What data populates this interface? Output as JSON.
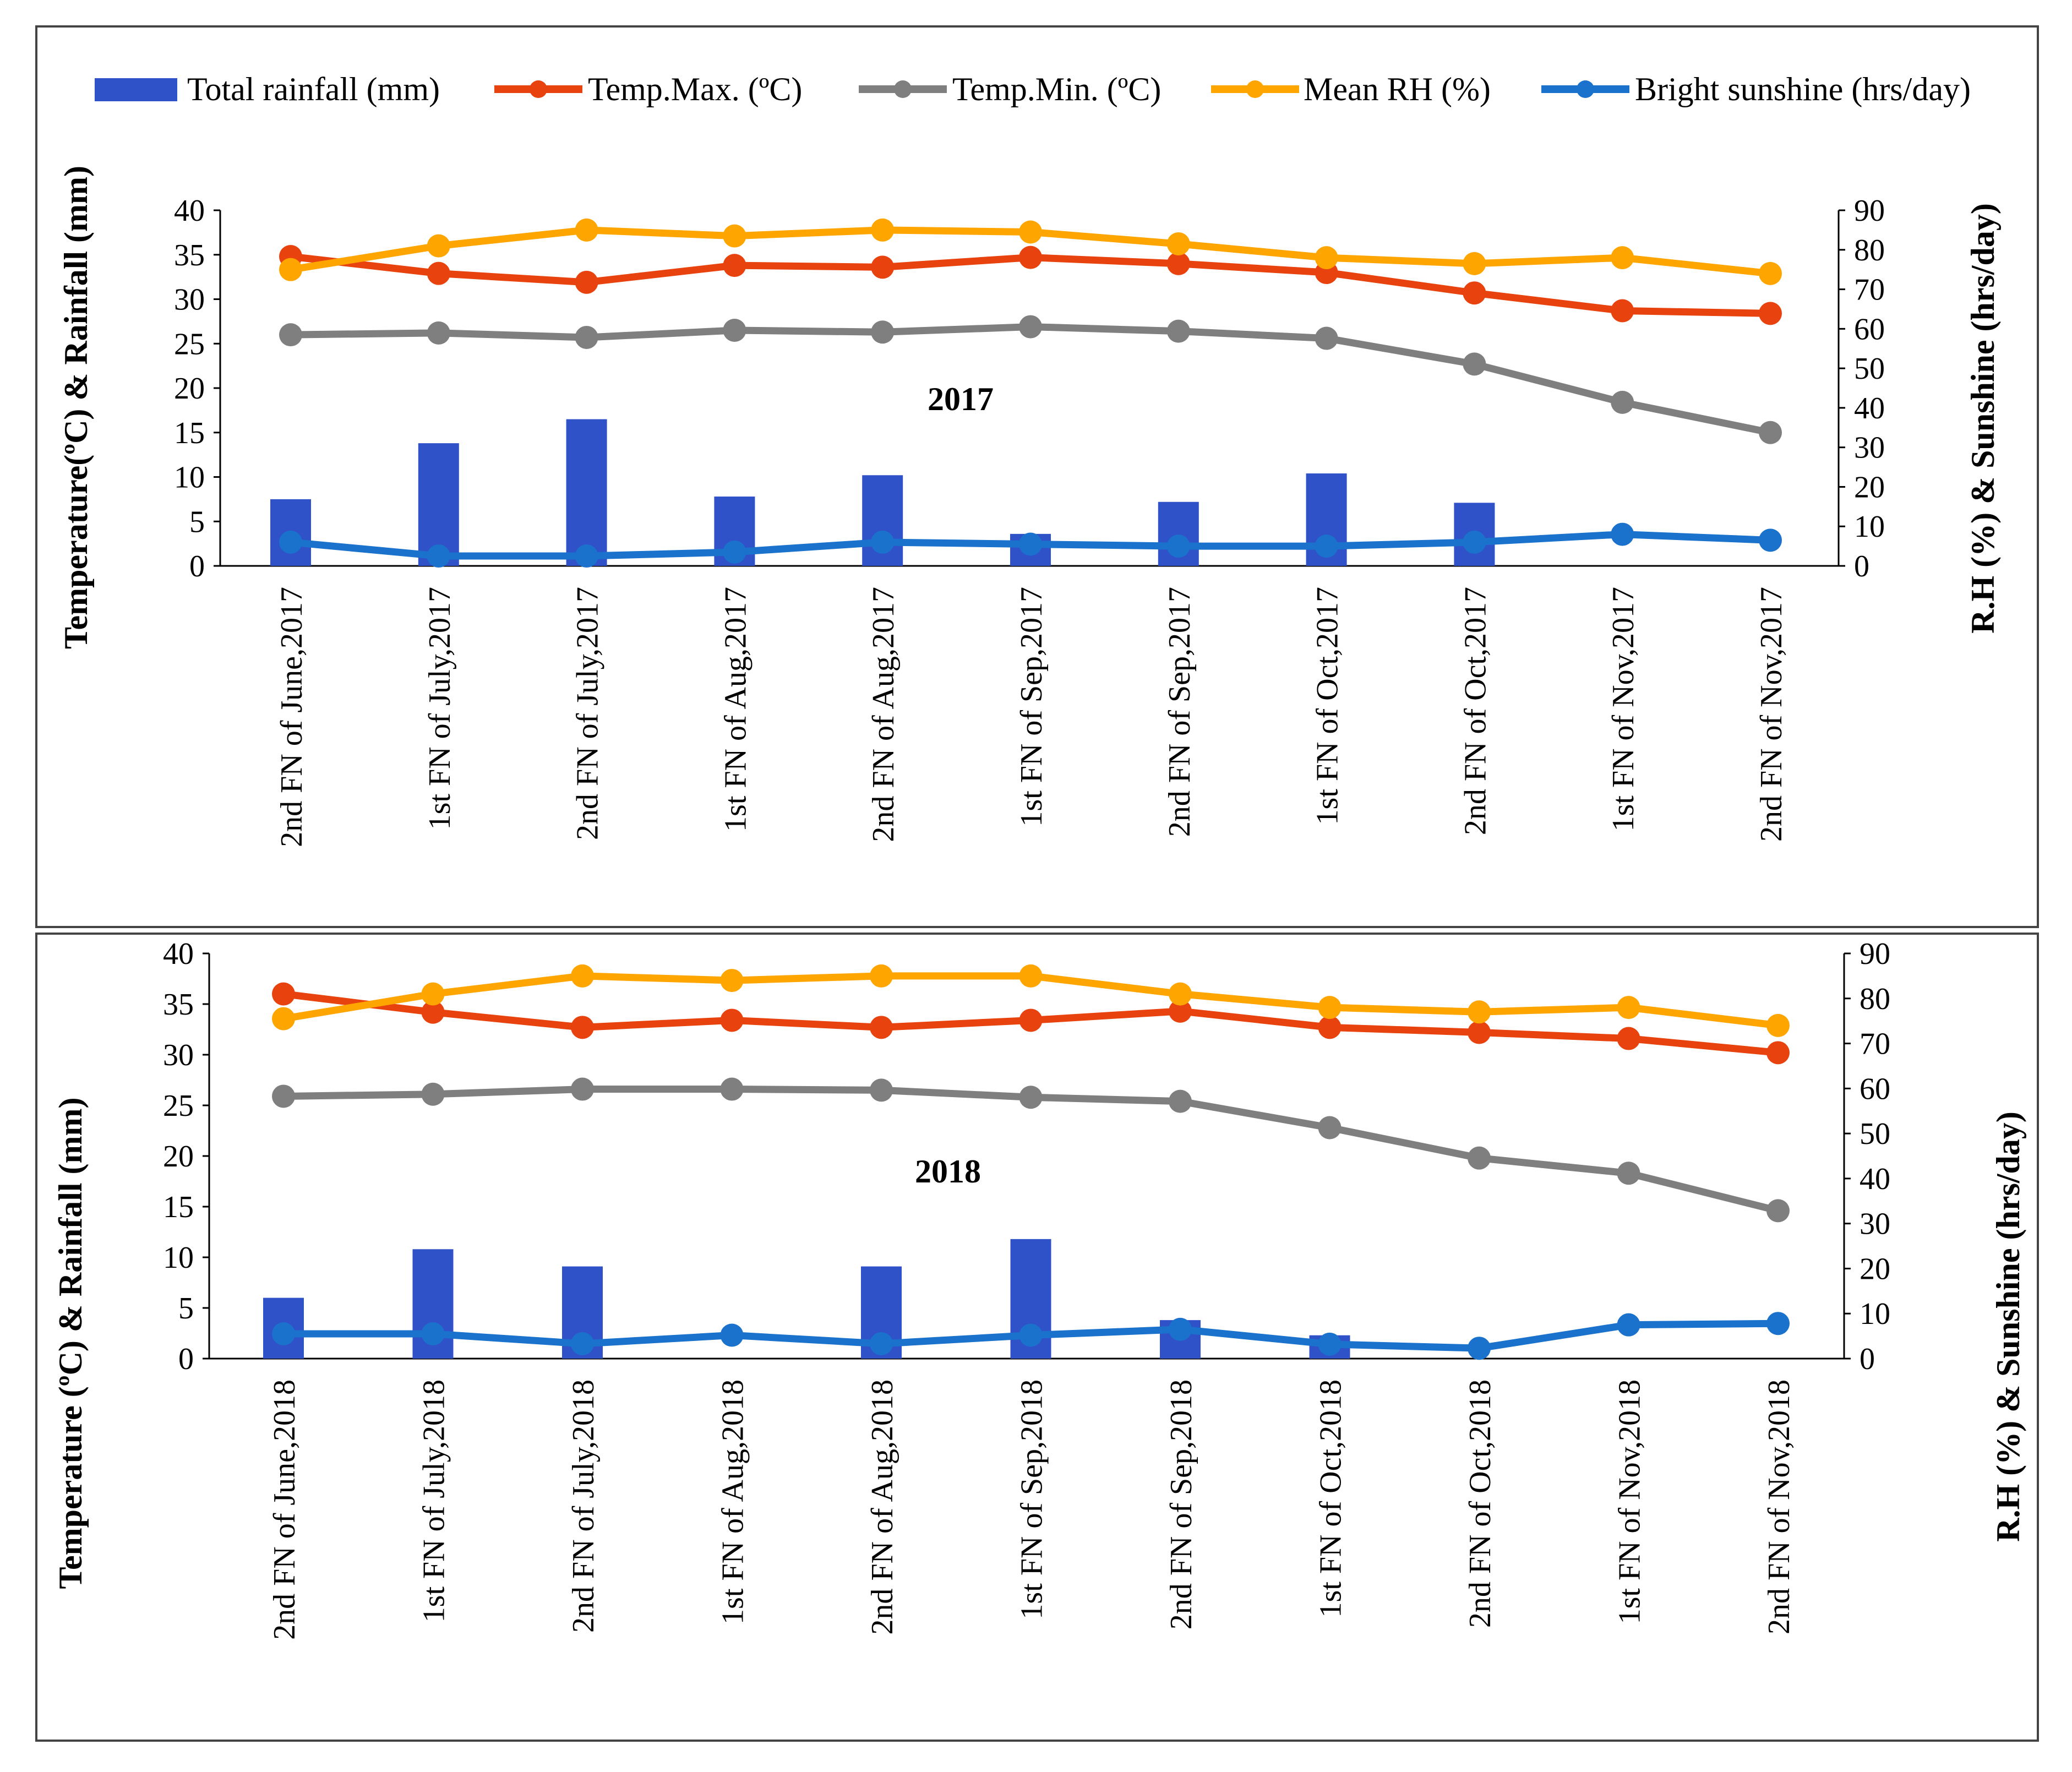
{
  "legend": [
    {
      "key": "rainfall",
      "label": "Total rainfall (mm)",
      "color": "#2f52c9"
    },
    {
      "key": "tmax",
      "label": "Temp.Max. (ºC)",
      "color": "#e8430e"
    },
    {
      "key": "tmin",
      "label": "Temp.Min. (ºC)",
      "color": "#7f7f7f"
    },
    {
      "key": "rh",
      "label": "Mean RH (%)",
      "color": "#ffa500"
    },
    {
      "key": "sun",
      "label": "Bright sunshine (hrs/day)",
      "color": "#1a72cc"
    }
  ],
  "chart_data": [
    {
      "type": "bar+line",
      "year_label": "2017",
      "categories": [
        "2nd FN of June,2017",
        "1st FN of July,2017",
        "2nd FN of July,2017",
        "1st FN of Aug,2017",
        "2nd FN of Aug,2017",
        "1st FN of Sep,2017",
        "2nd FN of Sep,2017",
        "1st FN of Oct,2017",
        "2nd FN of Oct,2017",
        "1st FN of Nov,2017",
        "2nd FN of Nov,2017"
      ],
      "ylabel_left": "Temperature(ºC) & Rainfall (mm)",
      "ylabel_right": "R.H (%) & Sunshine  (hrs/day)",
      "ylim_left": [
        0,
        40
      ],
      "ylim_right": [
        0,
        90
      ],
      "yticks_left": [
        "0",
        "5",
        "10",
        "15",
        "20",
        "25",
        "30",
        "35",
        "40"
      ],
      "yticks_right": [
        "0",
        "10",
        "20",
        "30",
        "40",
        "50",
        "60",
        "70",
        "80",
        "90"
      ],
      "series": [
        {
          "key": "rainfall",
          "name": "Total rainfall (mm)",
          "axis": "left",
          "kind": "bar",
          "values": [
            7.5,
            13.8,
            16.5,
            7.8,
            10.2,
            3.6,
            7.2,
            10.4,
            7.1,
            0,
            0
          ]
        },
        {
          "key": "tmax",
          "name": "Temp.Max. (ºC)",
          "axis": "left",
          "kind": "line",
          "values": [
            34.8,
            32.9,
            31.9,
            33.8,
            33.6,
            34.7,
            34.0,
            33.0,
            30.7,
            28.7,
            28.4
          ]
        },
        {
          "key": "tmin",
          "name": "Temp.Min. (ºC)",
          "axis": "left",
          "kind": "line",
          "values": [
            26.0,
            26.2,
            25.7,
            26.5,
            26.3,
            26.9,
            26.4,
            25.6,
            22.7,
            18.4,
            15.0
          ]
        },
        {
          "key": "rh",
          "name": "Mean RH (%)",
          "axis": "right",
          "kind": "line",
          "values": [
            75,
            81,
            85,
            83.5,
            85,
            84.5,
            81.5,
            78,
            76.5,
            78,
            74
          ]
        },
        {
          "key": "sun",
          "name": "Bright sunshine (hrs/day)",
          "axis": "right",
          "kind": "line",
          "values": [
            6,
            2.5,
            2.5,
            3.5,
            6,
            5.5,
            5,
            5,
            6,
            8,
            6.5
          ]
        }
      ]
    },
    {
      "type": "bar+line",
      "year_label": "2018",
      "categories": [
        "2nd FN of June,2018",
        "1st FN of July,2018",
        "2nd FN of July,2018",
        "1st FN of Aug,2018",
        "2nd FN of Aug,2018",
        "1st FN of Sep,2018",
        "2nd FN of Sep,2018",
        "1st FN of Oct,2018",
        "2nd FN of Oct,2018",
        "1st FN of Nov,2018",
        "2nd FN of Nov,2018"
      ],
      "ylabel_left": "Temperature (ºC) & Rainfall (mm)",
      "ylabel_right": "R.H (%) & Sunshine  (hrs/day)",
      "ylim_left": [
        0,
        40
      ],
      "ylim_right": [
        0,
        90
      ],
      "yticks_left": [
        "0",
        "5",
        "10",
        "15",
        "20",
        "25",
        "30",
        "35",
        "40"
      ],
      "yticks_right": [
        "0",
        "10",
        "20",
        "30",
        "40",
        "50",
        "60",
        "70",
        "80",
        "90"
      ],
      "series": [
        {
          "key": "rainfall",
          "name": "Total rainfall (mm)",
          "axis": "left",
          "kind": "bar",
          "values": [
            6.0,
            10.8,
            9.1,
            0,
            9.1,
            11.8,
            3.8,
            2.3,
            0,
            0,
            0
          ]
        },
        {
          "key": "tmax",
          "name": "Temp.Max. (ºC)",
          "axis": "left",
          "kind": "line",
          "values": [
            36.0,
            34.2,
            32.7,
            33.4,
            32.7,
            33.4,
            34.3,
            32.7,
            32.2,
            31.6,
            30.2
          ]
        },
        {
          "key": "tmin",
          "name": "Temp.Min. (ºC)",
          "axis": "left",
          "kind": "line",
          "values": [
            25.9,
            26.1,
            26.6,
            26.6,
            26.5,
            25.8,
            25.4,
            22.8,
            19.8,
            18.3,
            14.6
          ]
        },
        {
          "key": "rh",
          "name": "Mean RH (%)",
          "axis": "right",
          "kind": "line",
          "values": [
            75.5,
            81,
            85,
            84,
            85,
            85,
            81,
            78,
            77,
            78,
            74
          ]
        },
        {
          "key": "sun",
          "name": "Bright sunshine (hrs/day)",
          "axis": "right",
          "kind": "line",
          "values": [
            5.5,
            5.5,
            3.3,
            5.2,
            3.3,
            5.2,
            6.5,
            3.2,
            2.3,
            7.5,
            7.8
          ]
        }
      ]
    }
  ]
}
